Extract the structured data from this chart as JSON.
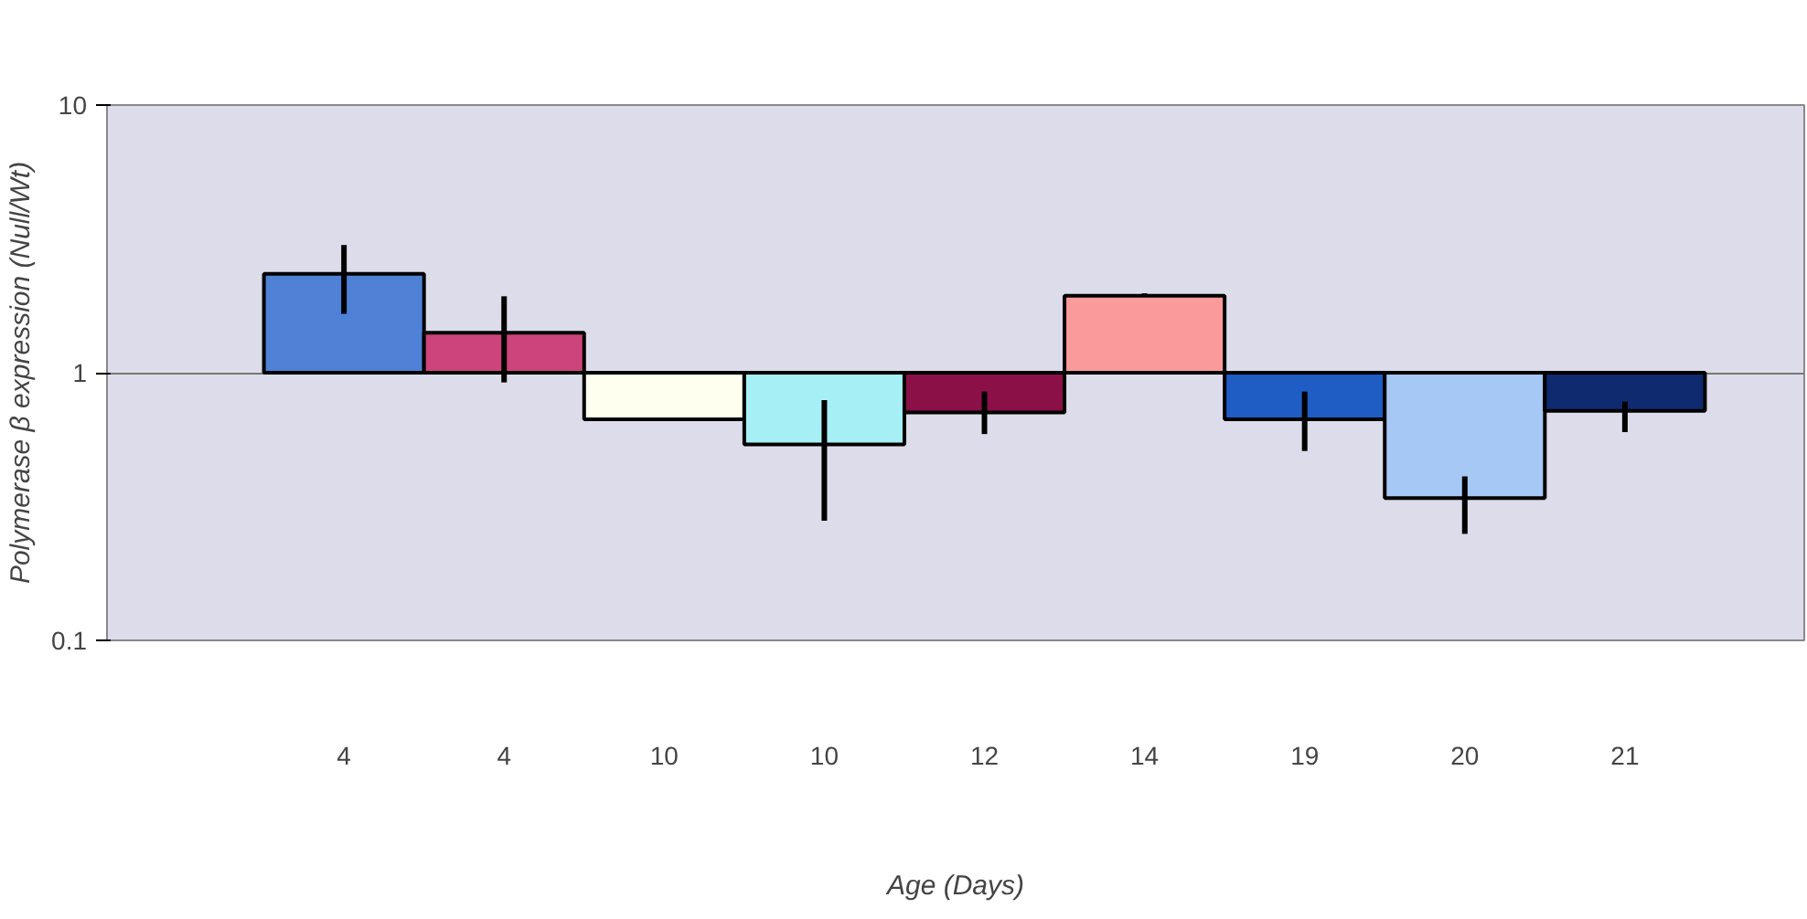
{
  "chart_data": {
    "type": "bar",
    "xlabel": "Age (Days)",
    "ylabel": "Polymerase β expression (Null/Wt)",
    "categories": [
      "4",
      "4",
      "10",
      "10",
      "12",
      "14",
      "19",
      "20",
      "21"
    ],
    "base": [
      1,
      1,
      1,
      1,
      1,
      1,
      1,
      1,
      1
    ],
    "values": [
      1.34,
      0.41,
      -0.33,
      -0.46,
      -0.29,
      0.94,
      -0.33,
      -0.66,
      -0.28
    ],
    "colors": [
      "#4f81d6",
      "#cc4479",
      "#fffff0",
      "#a6f0f5",
      "#8b1048",
      "#fb9a9a",
      "#1f5cc4",
      "#a6c8f5",
      "#0f2a6e"
    ],
    "errors": [
      [
        1.66,
        3.0
      ],
      [
        0.92,
        1.93
      ],
      [
        0.66,
        0.68
      ],
      [
        0.28,
        0.79
      ],
      [
        0.59,
        0.85
      ],
      [
        1.92,
        1.98
      ],
      [
        0.51,
        0.85
      ],
      [
        0.25,
        0.41
      ],
      [
        0.6,
        0.78
      ]
    ],
    "log": "y",
    "ylim": [
      0.1,
      10
    ],
    "yticks": [
      0.1,
      1,
      10
    ],
    "grid": "y"
  }
}
